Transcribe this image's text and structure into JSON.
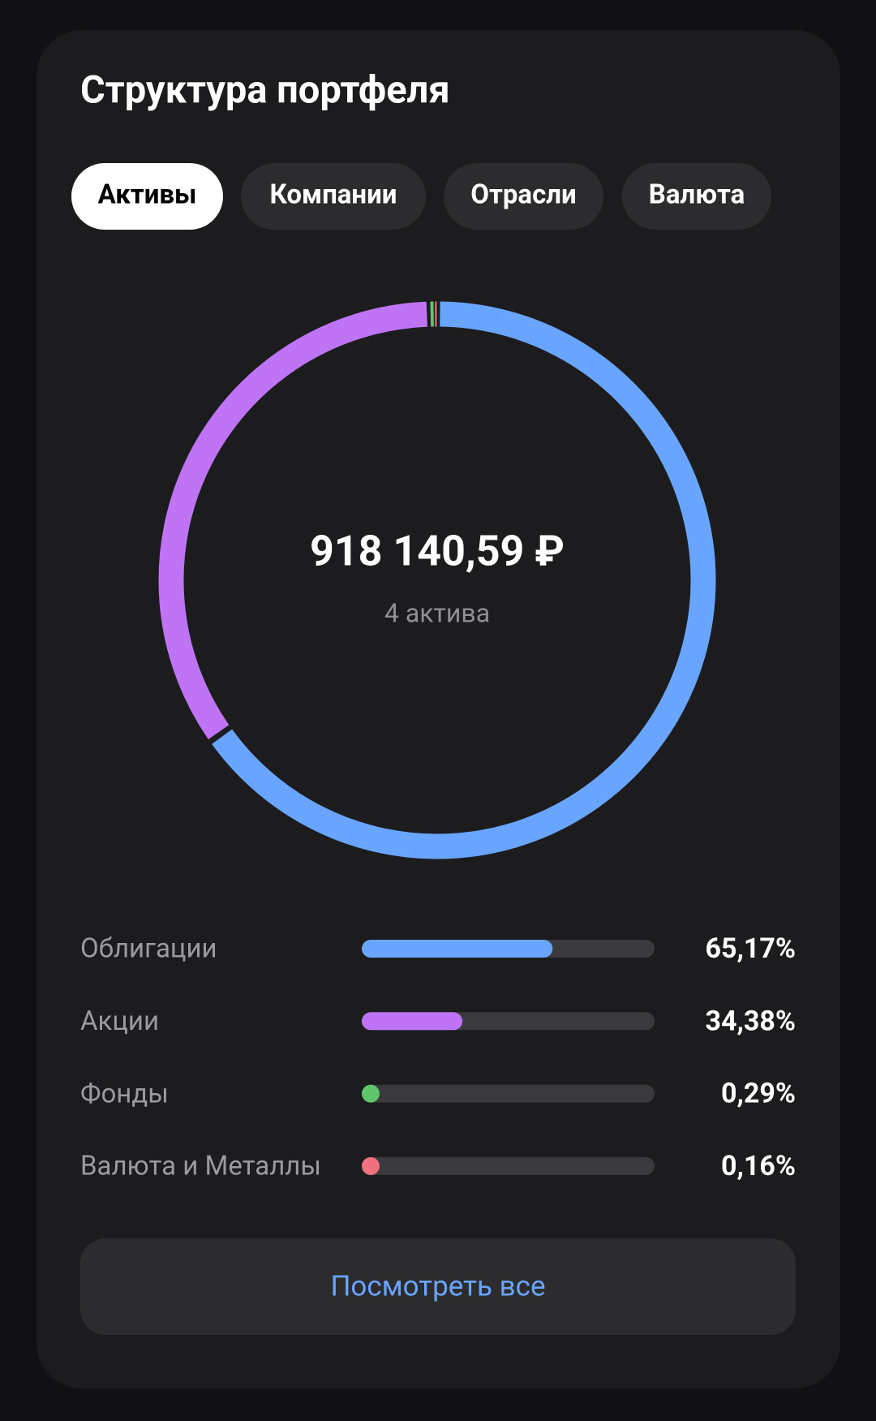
{
  "title": "Структура портфеля",
  "tabs": [
    "Активы",
    "Компании",
    "Отрасли",
    "Валюта"
  ],
  "active_tab": 0,
  "chart_data": {
    "type": "donut",
    "total": "918 140,59 ₽",
    "subtitle": "4 актива",
    "categories": [
      "Облигации",
      "Акции",
      "Фонды",
      "Валюта и Металлы"
    ],
    "values": [
      65.17,
      34.38,
      0.29,
      0.16
    ],
    "value_labels": [
      "65,17%",
      "34,38%",
      "0,29%",
      "0,16%"
    ],
    "colors": [
      "#69a5ff",
      "#bf74f5",
      "#5fc56a",
      "#f2707f"
    ]
  },
  "button": "Посмотреть все"
}
